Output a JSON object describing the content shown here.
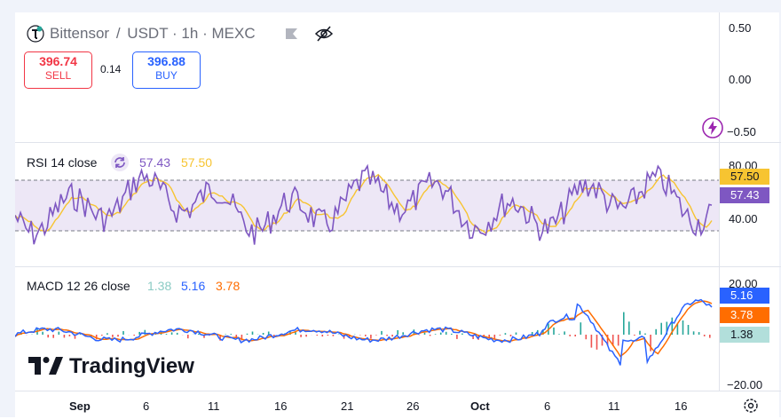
{
  "header": {
    "symbol": "Bittensor",
    "pair": "USDT",
    "interval": "1h",
    "exchange": "MEXC",
    "sep": "·"
  },
  "trade": {
    "sell_price": "396.74",
    "sell_label": "SELL",
    "spread": "0.14",
    "buy_price": "396.88",
    "buy_label": "BUY"
  },
  "price_axis": {
    "labels": [
      "0.50",
      "0.00",
      "−0.50"
    ]
  },
  "rsi": {
    "label": "RSI 14 close",
    "value": "57.43",
    "ma_value": "57.50",
    "axis_labels": [
      "80.00",
      "40.00"
    ],
    "tag_ma": "57.50",
    "tag_value": "57.43",
    "color_rsi": "#7e57c2",
    "color_ma": "#f7c431",
    "band_color": "#ede7f6"
  },
  "macd": {
    "label": "MACD 12 26 close",
    "hist": "1.38",
    "macd": "5.16",
    "signal": "3.78",
    "axis_labels": [
      "20.00",
      "−20.00"
    ],
    "color_macd": "#2962ff",
    "color_signal": "#ff6d00",
    "color_hist_pos": "#26a69a",
    "color_hist_neg": "#ef5350"
  },
  "time_axis": {
    "ticks": [
      "Sep",
      "6",
      "11",
      "16",
      "21",
      "26",
      "Oct",
      "6",
      "11",
      "16"
    ]
  },
  "branding": {
    "logo_text": "TradingView"
  },
  "colors": {
    "sell": "#f23645",
    "buy": "#2962ff",
    "lightning": "#9c27b0"
  }
}
